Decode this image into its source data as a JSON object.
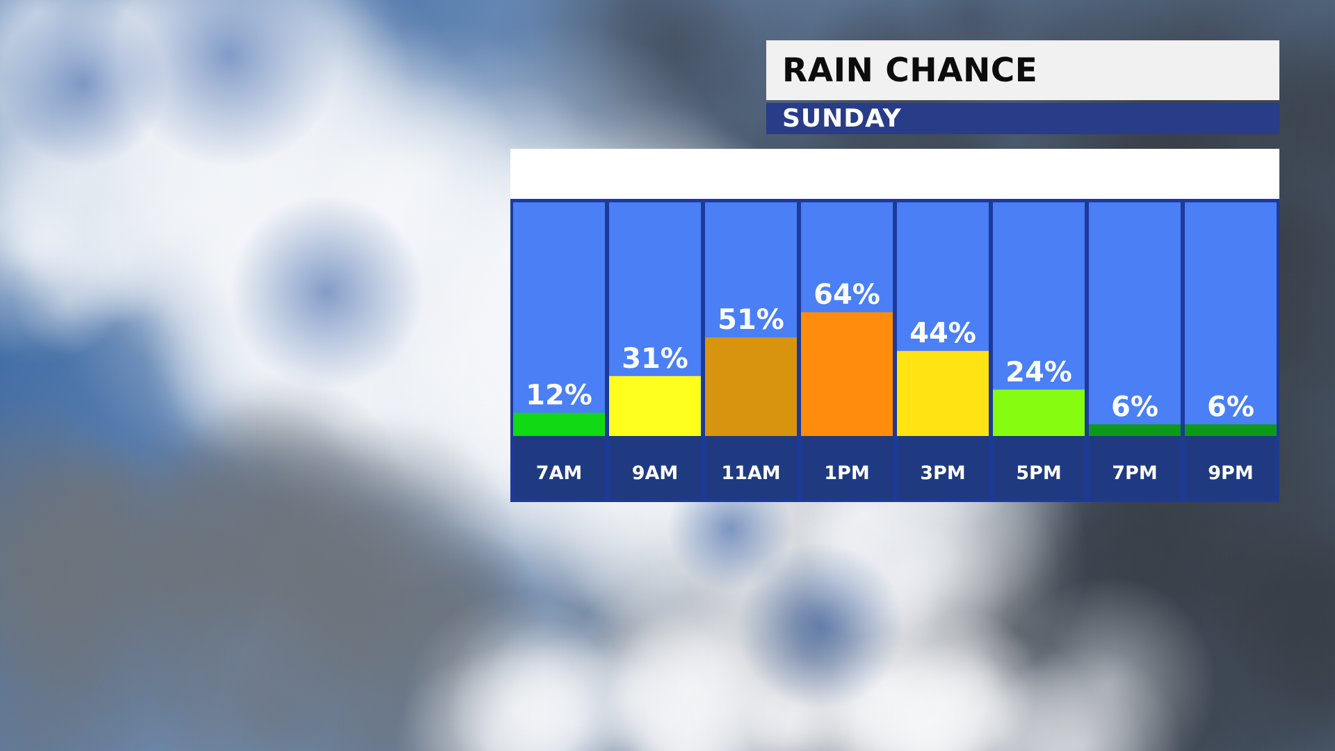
{
  "header": {
    "title": "RAIN CHANCE",
    "subtitle": "SUNDAY"
  },
  "colors": {
    "column_bg": "#4a7ff5",
    "frame": "#1c3a9a",
    "label_band": "#1f3a80",
    "subtitle_band": "#283c88"
  },
  "chart_data": {
    "type": "bar",
    "title": "RAIN CHANCE",
    "subtitle": "SUNDAY",
    "categories": [
      "7AM",
      "9AM",
      "11AM",
      "1PM",
      "3PM",
      "5PM",
      "7PM",
      "9PM"
    ],
    "values": [
      12,
      31,
      51,
      64,
      44,
      24,
      6,
      6
    ],
    "value_labels": [
      "12%",
      "31%",
      "51%",
      "64%",
      "44%",
      "24%",
      "6%",
      "6%"
    ],
    "bar_colors": [
      "#11d913",
      "#ffff1e",
      "#d9940f",
      "#ff8c0c",
      "#ffe312",
      "#86fc10",
      "#0c9a18",
      "#0c9a18"
    ],
    "unit": "%",
    "ylim": [
      0,
      100
    ],
    "grid": false,
    "legend": "none"
  }
}
